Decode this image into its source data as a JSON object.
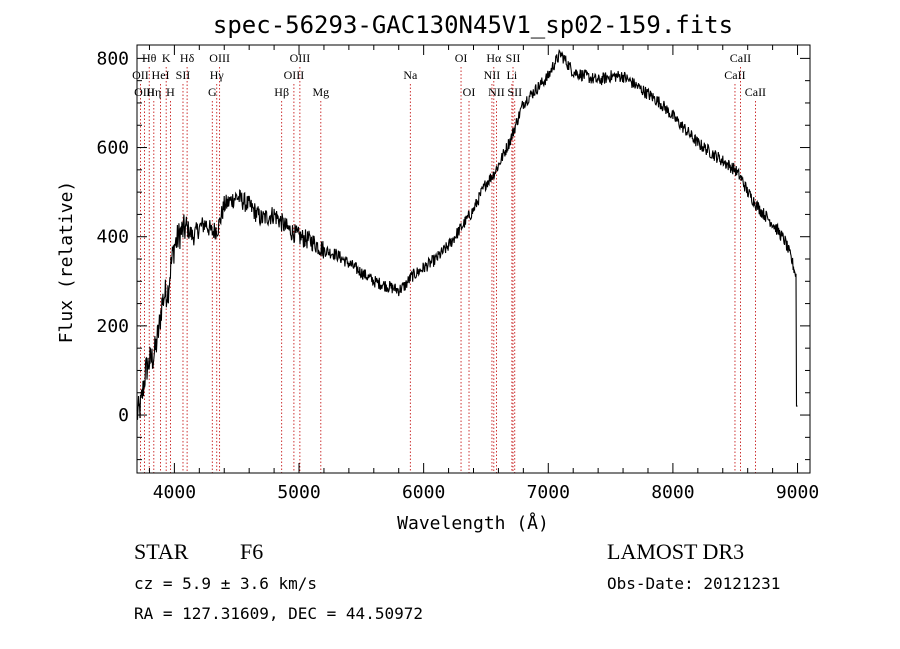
{
  "chart_data": {
    "type": "line",
    "title": "spec-56293-GAC130N45V1_sp02-159.fits",
    "xlabel": "Wavelength (Å)",
    "ylabel": "Flux (relative)",
    "xlim": [
      3700,
      9100
    ],
    "ylim": [
      -130,
      830
    ],
    "x_ticks": [
      4000,
      5000,
      6000,
      7000,
      8000,
      9000
    ],
    "y_ticks": [
      0,
      200,
      400,
      600,
      800
    ],
    "grid": false,
    "series": [
      {
        "name": "flux",
        "x": [
          3700,
          3730,
          3750,
          3770,
          3800,
          3830,
          3850,
          3880,
          3900,
          3920,
          3950,
          3970,
          4000,
          4050,
          4100,
          4150,
          4200,
          4250,
          4300,
          4350,
          4400,
          4450,
          4500,
          4600,
          4700,
          4800,
          4900,
          5000,
          5100,
          5200,
          5300,
          5400,
          5500,
          5600,
          5700,
          5800,
          5850,
          5900,
          6000,
          6100,
          6200,
          6300,
          6400,
          6500,
          6560,
          6600,
          6650,
          6700,
          6750,
          6800,
          6900,
          7000,
          7050,
          7100,
          7150,
          7200,
          7300,
          7400,
          7500,
          7600,
          7700,
          7800,
          7900,
          8000,
          8100,
          8200,
          8300,
          8400,
          8500,
          8550,
          8600,
          8650,
          8700,
          8800,
          8900,
          8950,
          9000
        ],
        "values": [
          0,
          20,
          60,
          100,
          120,
          130,
          150,
          200,
          250,
          270,
          280,
          330,
          380,
          410,
          420,
          400,
          420,
          430,
          410,
          420,
          470,
          480,
          490,
          470,
          440,
          450,
          420,
          400,
          390,
          370,
          360,
          340,
          320,
          300,
          290,
          280,
          290,
          310,
          330,
          350,
          380,
          420,
          460,
          520,
          540,
          560,
          590,
          620,
          660,
          700,
          730,
          760,
          790,
          810,
          790,
          770,
          760,
          750,
          760,
          760,
          740,
          720,
          700,
          670,
          640,
          610,
          590,
          570,
          550,
          530,
          500,
          480,
          460,
          430,
          390,
          350,
          300
        ]
      }
    ],
    "lines": [
      {
        "label": "Hθ",
        "x": 3798,
        "row": 1
      },
      {
        "label": "OII",
        "x": 3728,
        "row": 2
      },
      {
        "label": "OIII",
        "x": 3760,
        "row": 3
      },
      {
        "label": "K",
        "x": 3934,
        "row": 1
      },
      {
        "label": "HeI",
        "x": 3889,
        "row": 2
      },
      {
        "label": "Hη",
        "x": 3835,
        "row": 3
      },
      {
        "label": "SII",
        "x": 4069,
        "row": 2
      },
      {
        "label": "H",
        "x": 3968,
        "row": 3
      },
      {
        "label": "Hδ",
        "x": 4102,
        "row": 1
      },
      {
        "label": "OIII",
        "x": 4363,
        "row": 1
      },
      {
        "label": "Hγ",
        "x": 4340,
        "row": 2
      },
      {
        "label": "G",
        "x": 4304,
        "row": 3
      },
      {
        "label": "OIII",
        "x": 5007,
        "row": 1
      },
      {
        "label": "OIII",
        "x": 4959,
        "row": 2
      },
      {
        "label": "Hβ",
        "x": 4861,
        "row": 3
      },
      {
        "label": "Mg",
        "x": 5175,
        "row": 3
      },
      {
        "label": "Na",
        "x": 5893,
        "row": 2
      },
      {
        "label": "OI",
        "x": 6300,
        "row": 1
      },
      {
        "label": "OI",
        "x": 6364,
        "row": 3
      },
      {
        "label": "Hα",
        "x": 6563,
        "row": 1
      },
      {
        "label": "SII",
        "x": 6717,
        "row": 1
      },
      {
        "label": "NII",
        "x": 6548,
        "row": 2
      },
      {
        "label": "Li",
        "x": 6708,
        "row": 2
      },
      {
        "label": "NII",
        "x": 6584,
        "row": 3
      },
      {
        "label": "SII",
        "x": 6731,
        "row": 3
      },
      {
        "label": "CaII",
        "x": 8542,
        "row": 1
      },
      {
        "label": "CaII",
        "x": 8498,
        "row": 2
      },
      {
        "label": "CaII",
        "x": 8662,
        "row": 3
      }
    ]
  },
  "info": {
    "class": "STAR",
    "subclass": "F6",
    "survey": "LAMOST DR3",
    "cz": "cz = 5.9 ± 3.6 km/s",
    "obs_date": "Obs-Date: 20121231",
    "radec": "RA = 127.31609, DEC =  44.50972"
  }
}
